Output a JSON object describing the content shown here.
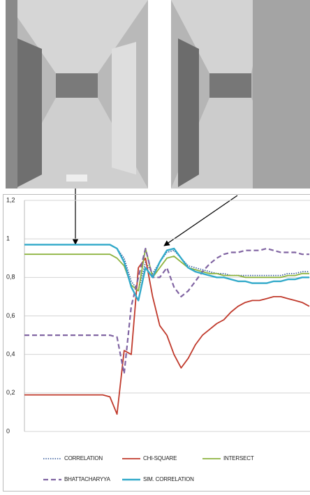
{
  "chart_data": {
    "type": "line",
    "ylim": [
      0,
      1.2
    ],
    "yticks": [
      0,
      {
        "value": 0.2,
        "label": "0,2"
      },
      {
        "value": 0.4,
        "label": "0,4"
      },
      {
        "value": 0.6,
        "label": "0,6"
      },
      {
        "value": 0.8,
        "label": "0,8"
      },
      1,
      {
        "value": 1.2,
        "label": "1,2"
      }
    ],
    "grid": true,
    "series": [
      {
        "name": "CORRELATION",
        "color": "#2f5597",
        "style": "dotted",
        "values": [
          0.97,
          0.97,
          0.97,
          0.97,
          0.97,
          0.97,
          0.97,
          0.97,
          0.97,
          0.97,
          0.97,
          0.97,
          0.97,
          0.95,
          0.9,
          0.78,
          0.73,
          0.88,
          0.82,
          0.88,
          0.93,
          0.94,
          0.9,
          0.86,
          0.85,
          0.84,
          0.83,
          0.82,
          0.82,
          0.81,
          0.81,
          0.81,
          0.81,
          0.81,
          0.81,
          0.81,
          0.81,
          0.82,
          0.82,
          0.83,
          0.83
        ]
      },
      {
        "name": "CHI-SQUARE",
        "color": "#c0392b",
        "style": "solid",
        "values": [
          0.19,
          0.19,
          0.19,
          0.19,
          0.19,
          0.19,
          0.19,
          0.19,
          0.19,
          0.19,
          0.19,
          0.19,
          0.18,
          0.09,
          0.42,
          0.4,
          0.85,
          0.9,
          0.7,
          0.55,
          0.5,
          0.4,
          0.33,
          0.38,
          0.45,
          0.5,
          0.53,
          0.56,
          0.58,
          0.62,
          0.65,
          0.67,
          0.68,
          0.68,
          0.69,
          0.7,
          0.7,
          0.69,
          0.68,
          0.67,
          0.65
        ]
      },
      {
        "name": "INTERSECT",
        "color": "#8db33f",
        "style": "solid",
        "values": [
          0.92,
          0.92,
          0.92,
          0.92,
          0.92,
          0.92,
          0.92,
          0.92,
          0.92,
          0.92,
          0.92,
          0.92,
          0.92,
          0.9,
          0.86,
          0.76,
          0.73,
          0.95,
          0.8,
          0.85,
          0.9,
          0.91,
          0.88,
          0.85,
          0.84,
          0.83,
          0.82,
          0.82,
          0.81,
          0.81,
          0.81,
          0.8,
          0.8,
          0.8,
          0.8,
          0.8,
          0.8,
          0.81,
          0.81,
          0.82,
          0.82
        ]
      },
      {
        "name": "BHATTACHARYYA",
        "color": "#8064a2",
        "style": "dashed",
        "values": [
          0.5,
          0.5,
          0.5,
          0.5,
          0.5,
          0.5,
          0.5,
          0.5,
          0.5,
          0.5,
          0.5,
          0.5,
          0.5,
          0.49,
          0.3,
          0.65,
          0.8,
          0.95,
          0.8,
          0.8,
          0.85,
          0.75,
          0.7,
          0.73,
          0.78,
          0.83,
          0.87,
          0.9,
          0.92,
          0.93,
          0.93,
          0.94,
          0.94,
          0.94,
          0.95,
          0.94,
          0.93,
          0.93,
          0.93,
          0.92,
          0.92
        ]
      },
      {
        "name": "SIM. CORRELATION",
        "color": "#31a9c9",
        "style": "solid",
        "values": [
          0.97,
          0.97,
          0.97,
          0.97,
          0.97,
          0.97,
          0.97,
          0.97,
          0.97,
          0.97,
          0.97,
          0.97,
          0.97,
          0.95,
          0.88,
          0.75,
          0.68,
          0.85,
          0.8,
          0.88,
          0.94,
          0.95,
          0.9,
          0.85,
          0.83,
          0.82,
          0.81,
          0.8,
          0.8,
          0.79,
          0.78,
          0.78,
          0.77,
          0.77,
          0.77,
          0.78,
          0.78,
          0.79,
          0.79,
          0.8,
          0.8
        ]
      }
    ]
  }
}
